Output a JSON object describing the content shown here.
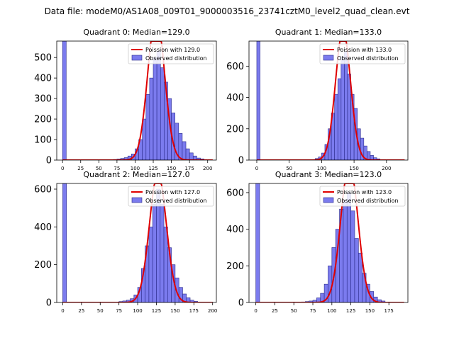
{
  "suptitle": "Data file: modeM0/AS1A08_009T01_9000003516_23741cztM0_level2_quad_clean.evt",
  "colors": {
    "bar_fill": "#7b7bee",
    "bar_edge": "#2a2a8a",
    "curve": "#e00000"
  },
  "chart_data": [
    {
      "type": "bar",
      "title": "Quadrant 0: Median=129.0",
      "median": 129.0,
      "xlim": [
        -8,
        212
      ],
      "ylim": [
        0,
        580
      ],
      "xticks": [
        0,
        25,
        50,
        75,
        100,
        125,
        150,
        175,
        200
      ],
      "yticks": [
        0,
        100,
        200,
        300,
        400,
        500
      ],
      "bin_width": 5,
      "zero_bar": 580,
      "bars": [
        [
          70,
          3
        ],
        [
          75,
          5
        ],
        [
          80,
          8
        ],
        [
          85,
          12
        ],
        [
          90,
          20
        ],
        [
          95,
          30
        ],
        [
          100,
          55
        ],
        [
          105,
          100
        ],
        [
          110,
          200
        ],
        [
          115,
          320
        ],
        [
          120,
          400
        ],
        [
          125,
          500
        ],
        [
          130,
          530
        ],
        [
          135,
          450
        ],
        [
          140,
          380
        ],
        [
          145,
          300
        ],
        [
          150,
          230
        ],
        [
          155,
          180
        ],
        [
          160,
          130
        ],
        [
          165,
          90
        ],
        [
          170,
          55
        ],
        [
          175,
          35
        ],
        [
          180,
          20
        ],
        [
          185,
          10
        ],
        [
          190,
          6
        ]
      ],
      "legend": [
        "Poission with 129.0",
        "Observed distribution"
      ]
    },
    {
      "type": "bar",
      "title": "Quadrant 1: Median=133.0",
      "median": 133.0,
      "xlim": [
        -12,
        233
      ],
      "ylim": [
        0,
        760
      ],
      "xticks": [
        0,
        50,
        100,
        150,
        200
      ],
      "yticks": [
        0,
        200,
        400,
        600
      ],
      "bin_width": 5,
      "zero_bar": 760,
      "bars": [
        [
          90,
          10
        ],
        [
          95,
          20
        ],
        [
          100,
          45
        ],
        [
          105,
          100
        ],
        [
          110,
          200
        ],
        [
          115,
          300
        ],
        [
          120,
          420
        ],
        [
          125,
          520
        ],
        [
          130,
          660
        ],
        [
          135,
          690
        ],
        [
          140,
          550
        ],
        [
          145,
          420
        ],
        [
          150,
          330
        ],
        [
          155,
          200
        ],
        [
          160,
          140
        ],
        [
          165,
          90
        ],
        [
          170,
          55
        ],
        [
          175,
          30
        ],
        [
          180,
          15
        ],
        [
          185,
          8
        ]
      ],
      "legend": [
        "Poission with 133.0",
        "Observed distribution"
      ]
    },
    {
      "type": "bar",
      "title": "Quadrant 2: Median=127.0",
      "median": 127.0,
      "xlim": [
        -8,
        205
      ],
      "ylim": [
        0,
        630
      ],
      "xticks": [
        0,
        25,
        50,
        75,
        100,
        125,
        150,
        175,
        200
      ],
      "yticks": [
        0,
        200,
        400,
        600
      ],
      "bin_width": 5,
      "zero_bar": 630,
      "bars": [
        [
          75,
          5
        ],
        [
          80,
          8
        ],
        [
          85,
          12
        ],
        [
          90,
          20
        ],
        [
          95,
          40
        ],
        [
          100,
          80
        ],
        [
          105,
          180
        ],
        [
          110,
          300
        ],
        [
          115,
          400
        ],
        [
          120,
          520
        ],
        [
          125,
          600
        ],
        [
          130,
          520
        ],
        [
          135,
          400
        ],
        [
          140,
          290
        ],
        [
          145,
          200
        ],
        [
          150,
          130
        ],
        [
          155,
          80
        ],
        [
          160,
          45
        ],
        [
          165,
          25
        ],
        [
          170,
          12
        ],
        [
          175,
          6
        ]
      ],
      "legend": [
        "Poission with 127.0",
        "Observed distribution"
      ]
    },
    {
      "type": "bar",
      "title": "Quadrant 3: Median=123.0",
      "median": 123.0,
      "xlim": [
        -9,
        200
      ],
      "ylim": [
        0,
        650
      ],
      "xticks": [
        0,
        25,
        50,
        75,
        100,
        125,
        150,
        175
      ],
      "yticks": [
        0,
        200,
        400,
        600
      ],
      "bin_width": 5,
      "zero_bar": 650,
      "bars": [
        [
          60,
          3
        ],
        [
          65,
          5
        ],
        [
          70,
          8
        ],
        [
          75,
          12
        ],
        [
          80,
          25
        ],
        [
          85,
          50
        ],
        [
          90,
          100
        ],
        [
          95,
          200
        ],
        [
          100,
          300
        ],
        [
          105,
          400
        ],
        [
          110,
          510
        ],
        [
          115,
          560
        ],
        [
          120,
          600
        ],
        [
          125,
          500
        ],
        [
          130,
          350
        ],
        [
          135,
          270
        ],
        [
          140,
          160
        ],
        [
          145,
          100
        ],
        [
          150,
          60
        ],
        [
          155,
          30
        ],
        [
          160,
          15
        ],
        [
          165,
          8
        ]
      ],
      "legend": [
        "Poission with 123.0",
        "Observed distribution"
      ]
    }
  ]
}
